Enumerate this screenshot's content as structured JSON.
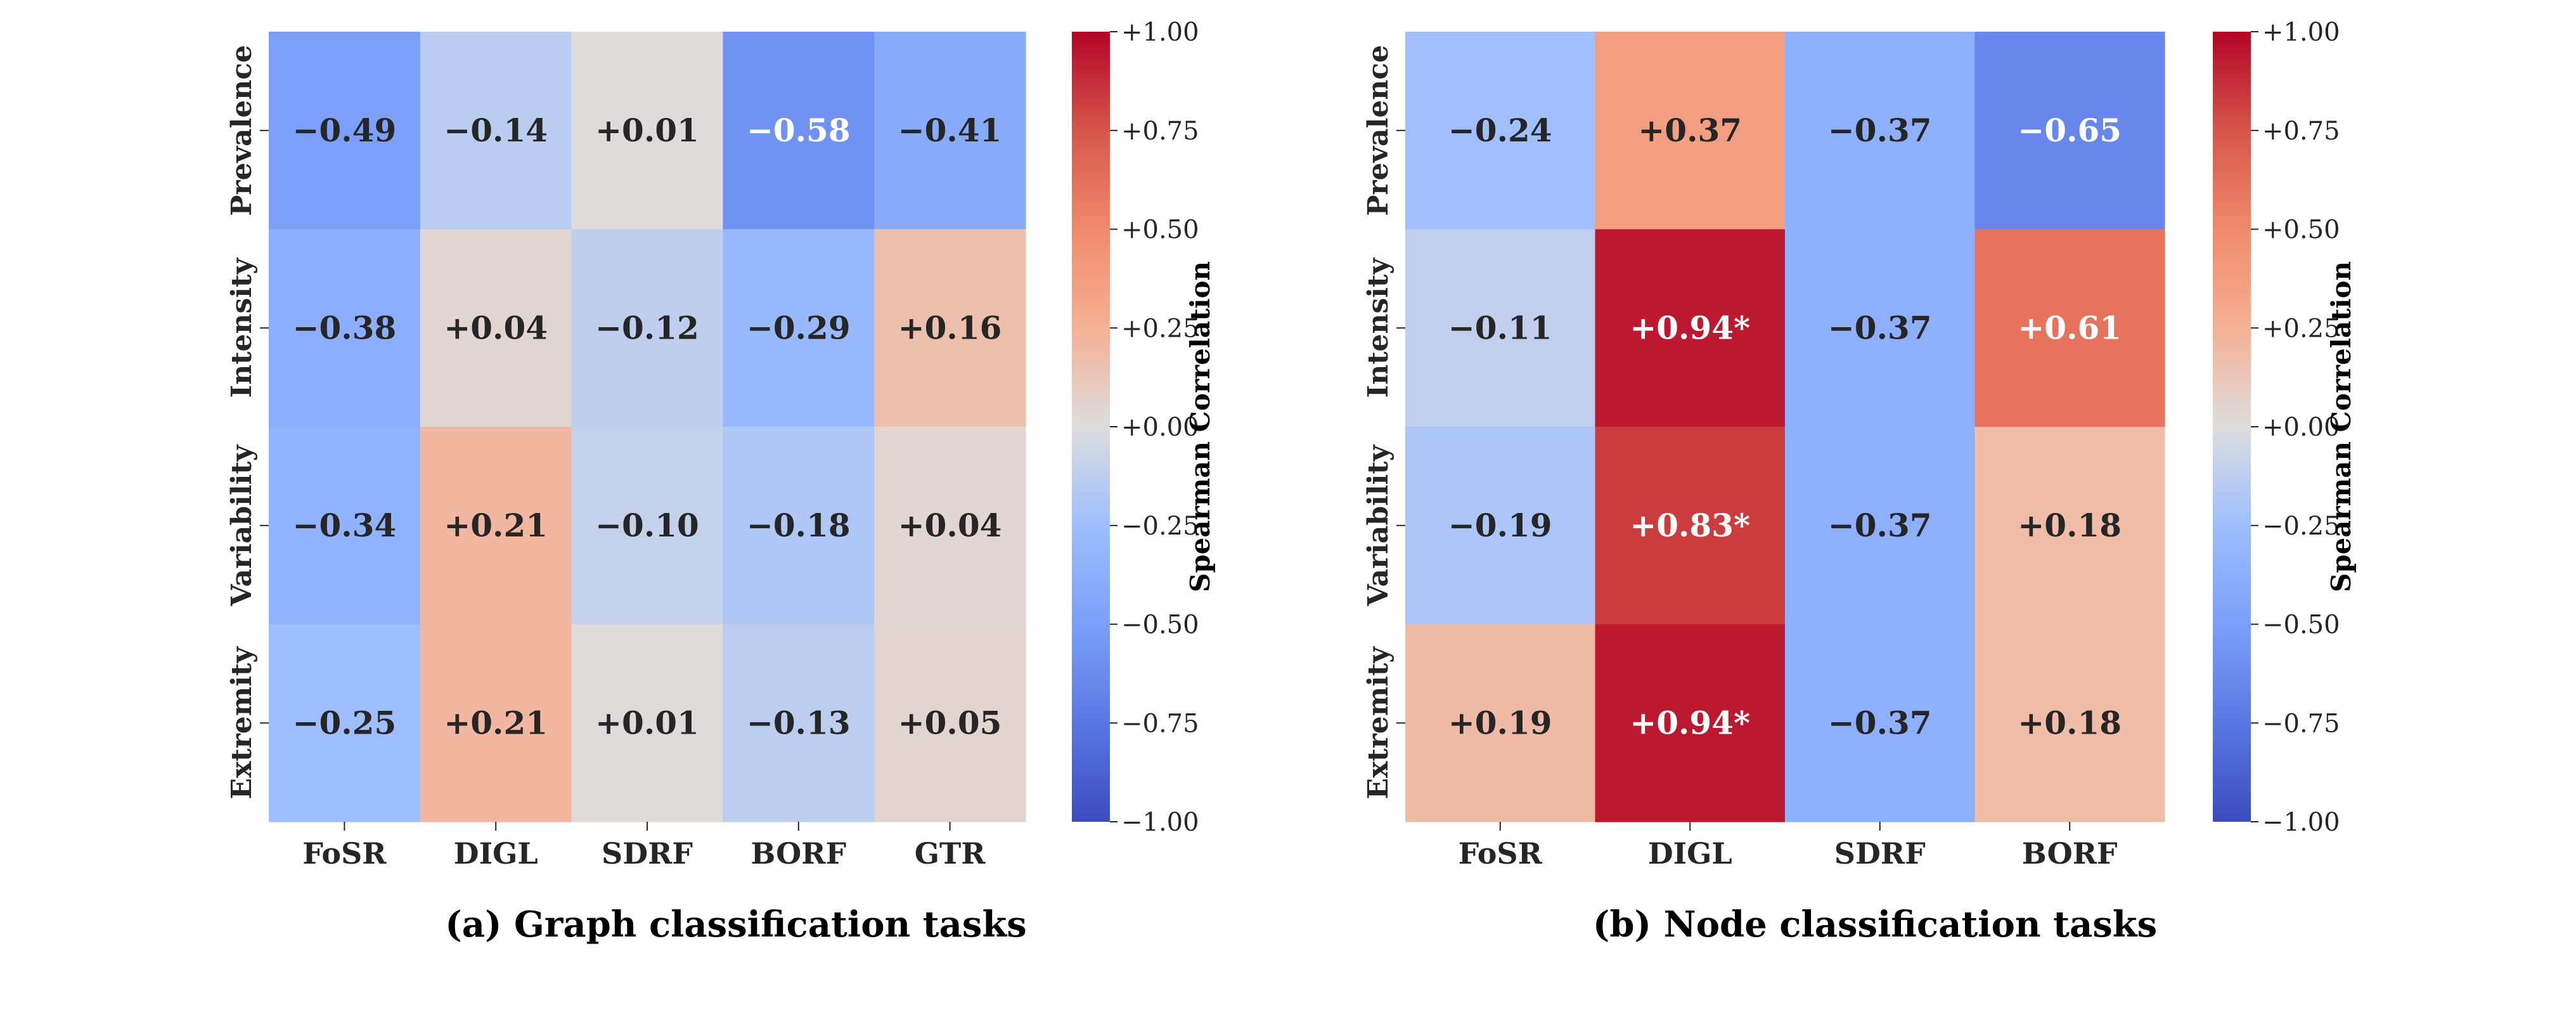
{
  "chart_data": [
    {
      "type": "heatmap",
      "caption": "(a) Graph classification tasks",
      "rows": [
        "Prevalence",
        "Intensity",
        "Variability",
        "Extremity"
      ],
      "columns": [
        "FoSR",
        "DIGL",
        "SDRF",
        "BORF",
        "GTR"
      ],
      "values": [
        [
          -0.49,
          -0.14,
          0.01,
          -0.58,
          -0.41
        ],
        [
          -0.38,
          0.04,
          -0.12,
          -0.29,
          0.16
        ],
        [
          -0.34,
          0.21,
          -0.1,
          -0.18,
          0.04
        ],
        [
          -0.25,
          0.21,
          0.01,
          -0.13,
          0.05
        ]
      ],
      "labels": [
        [
          "−0.49",
          "−0.14",
          "+0.01",
          "−0.58",
          "−0.41"
        ],
        [
          "−0.38",
          "+0.04",
          "−0.12",
          "−0.29",
          "+0.16"
        ],
        [
          "−0.34",
          "+0.21",
          "−0.10",
          "−0.18",
          "+0.04"
        ],
        [
          "−0.25",
          "+0.21",
          "+0.01",
          "−0.13",
          "+0.05"
        ]
      ],
      "colorbar": {
        "label": "Spearman Correlation",
        "range": [
          -1,
          1
        ],
        "ticks": [
          "+1.00",
          "+0.75",
          "+0.50",
          "+0.25",
          "+0.00",
          "−0.25",
          "−0.50",
          "−0.75",
          "−1.00"
        ],
        "colormap": "coolwarm"
      }
    },
    {
      "type": "heatmap",
      "caption": "(b) Node classification tasks",
      "rows": [
        "Prevalence",
        "Intensity",
        "Variability",
        "Extremity"
      ],
      "columns": [
        "FoSR",
        "DIGL",
        "SDRF",
        "BORF"
      ],
      "values": [
        [
          -0.24,
          0.37,
          -0.37,
          -0.65
        ],
        [
          -0.11,
          0.94,
          -0.37,
          0.61
        ],
        [
          -0.19,
          0.83,
          -0.37,
          0.18
        ],
        [
          0.19,
          0.94,
          -0.37,
          0.18
        ]
      ],
      "labels": [
        [
          "−0.24",
          "+0.37",
          "−0.37",
          "−0.65"
        ],
        [
          "−0.11",
          "+0.94*",
          "−0.37",
          "+0.61"
        ],
        [
          "−0.19",
          "+0.83*",
          "−0.37",
          "+0.18"
        ],
        [
          "+0.19",
          "+0.94*",
          "−0.37",
          "+0.18"
        ]
      ],
      "colorbar": {
        "label": "Spearman Correlation",
        "range": [
          -1,
          1
        ],
        "ticks": [
          "+1.00",
          "+0.75",
          "+0.50",
          "+0.25",
          "+0.00",
          "−0.25",
          "−0.50",
          "−0.75",
          "−1.00"
        ],
        "colormap": "coolwarm"
      }
    }
  ]
}
